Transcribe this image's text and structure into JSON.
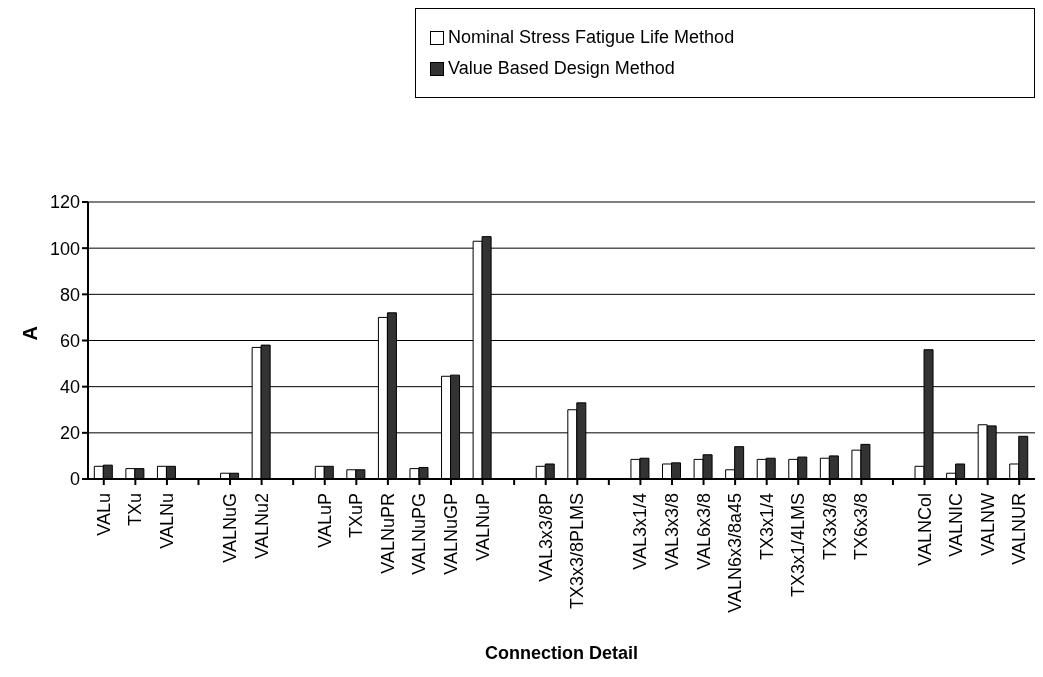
{
  "chart_data": {
    "type": "bar",
    "xlabel": "Connection Detail",
    "ylabel": "A",
    "categories": [
      "VALu",
      "TXu",
      "VALNu",
      null,
      "VALNuG",
      "VALNu2",
      null,
      "VALuP",
      "TXuP",
      "VALNuPR",
      "VALNuPG",
      "VALNuGP",
      "VALNuP",
      null,
      "VAL3x3/8P",
      "TX3x3/8PLMS",
      null,
      "VAL3x1/4",
      "VAL3x3/8",
      "VAL6x3/8",
      "VALN6x3/8a45",
      "TX3x1/4",
      "TX3x1/4LMS",
      "TX3x3/8",
      "TX6x3/8",
      null,
      "VALNCol",
      "VALNIC",
      "VALNW",
      "VALNUR"
    ],
    "series": [
      {
        "name": "Nominal Stress Fatigue Life Method",
        "color": "#ffffff",
        "values": [
          5.5,
          4.5,
          5.5,
          null,
          2.5,
          57,
          null,
          5.5,
          4,
          70,
          4.5,
          44.5,
          103,
          null,
          5.5,
          30,
          null,
          8.5,
          6.5,
          8.5,
          4,
          8.5,
          8.5,
          9,
          12.5,
          null,
          5.5,
          2.5,
          23.5,
          6.5
        ]
      },
      {
        "name": "Value Based Design Method",
        "color": "#333333",
        "values": [
          6,
          4.5,
          5.5,
          null,
          2.5,
          58,
          null,
          5.5,
          4,
          72,
          5,
          45,
          105,
          null,
          6.5,
          33,
          null,
          9,
          7,
          10.5,
          14,
          9,
          9.5,
          10,
          15,
          null,
          56,
          6.5,
          23,
          18.5
        ]
      }
    ],
    "ylim": [
      0,
      120
    ],
    "yticks": [
      0,
      20,
      40,
      60,
      80,
      100,
      120
    ],
    "grid": "y",
    "legend": "top right"
  }
}
